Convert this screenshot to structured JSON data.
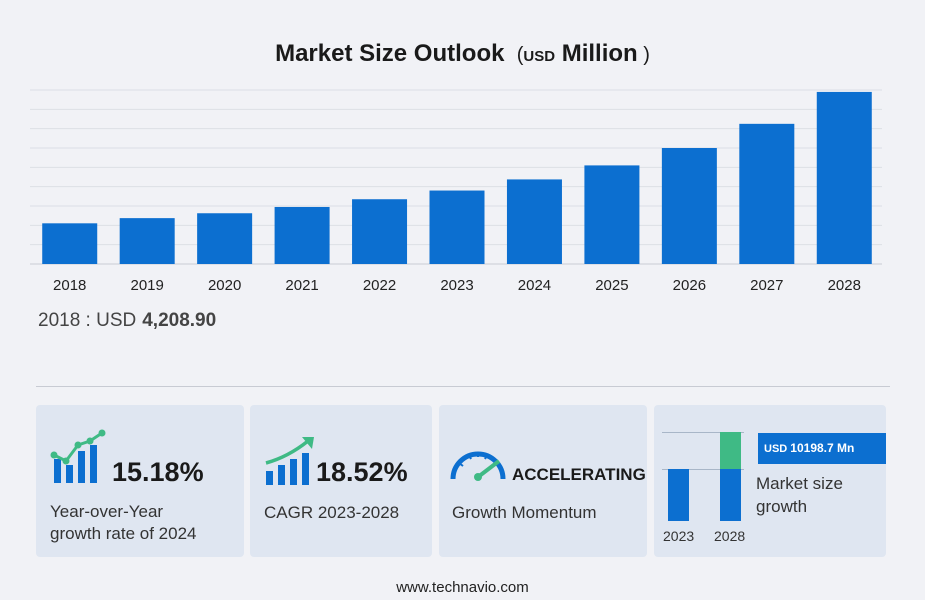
{
  "header": {
    "title": "Market Size Outlook",
    "unit_prefix": "USD",
    "unit_main": "Million"
  },
  "chart_data": {
    "type": "bar",
    "title": "Market Size Outlook ( USD Million )",
    "categories": [
      "2018",
      "2019",
      "2020",
      "2021",
      "2022",
      "2023",
      "2024",
      "2025",
      "2026",
      "2027",
      "2028"
    ],
    "values": [
      4208.9,
      4745,
      5250,
      5900,
      6700,
      7600,
      8750,
      10200,
      12000,
      14500,
      17800
    ],
    "ylim": [
      0,
      18000
    ],
    "grid": true,
    "bar_color": "#0c6fd0"
  },
  "baseline": {
    "label": "2018 : USD",
    "value": "4,208.90"
  },
  "cards": {
    "yoy": {
      "value": "15.18%",
      "label_line1": "Year-over-Year",
      "label_line2": "growth rate of 2024"
    },
    "cagr": {
      "value": "18.52%",
      "label": "CAGR  2023-2028"
    },
    "momentum": {
      "value": "ACCELERATING",
      "label": "Growth Momentum"
    },
    "growth": {
      "tag_prefix": "USD",
      "tag_value": "10198.7 Mn",
      "label_line1": "Market size",
      "label_line2": "growth",
      "year_a": "2023",
      "year_b": "2028"
    }
  },
  "footer": {
    "text": "www.technavio.com"
  },
  "colors": {
    "accent": "#0c6fd0",
    "green": "#3fba85",
    "card_bg": "#dfe6f1",
    "page_bg": "#f1f2f6"
  }
}
